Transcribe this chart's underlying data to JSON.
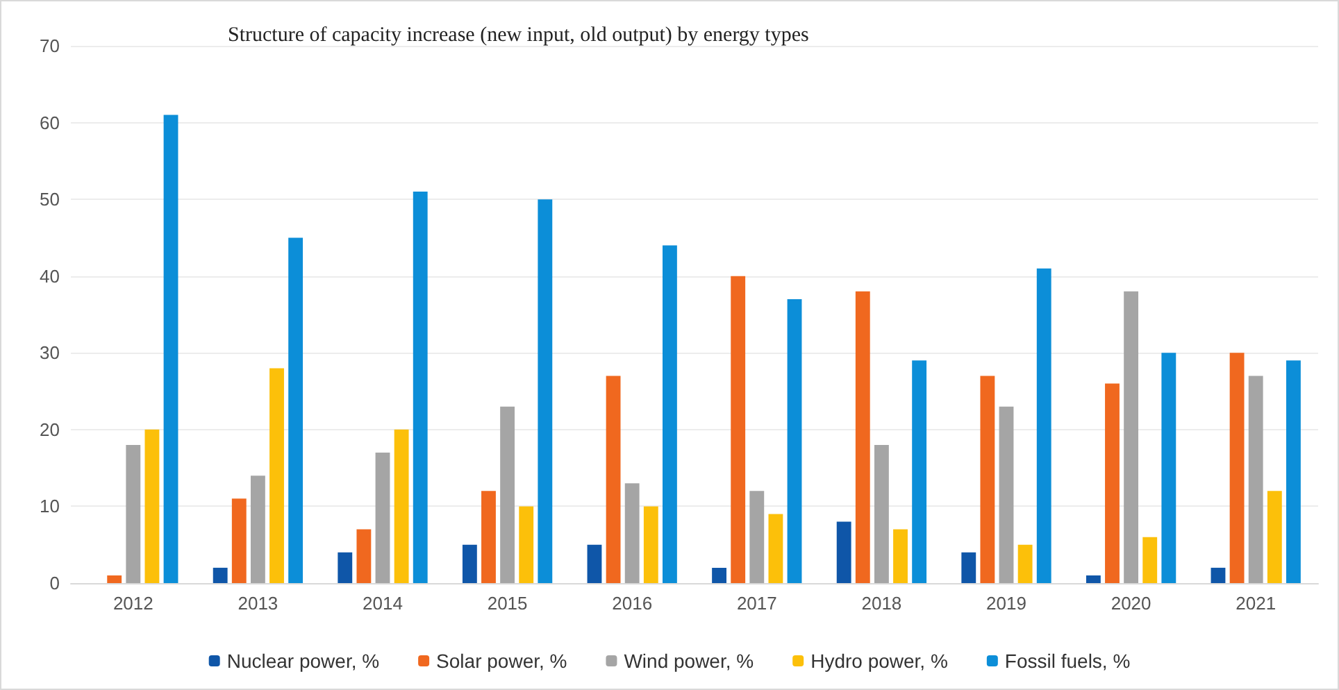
{
  "chart_data": {
    "type": "bar",
    "title": "Structure of capacity increase (new input, old output) by energy types",
    "categories": [
      "2012",
      "2013",
      "2014",
      "2015",
      "2016",
      "2017",
      "2018",
      "2019",
      "2020",
      "2021"
    ],
    "series": [
      {
        "name": "Nuclear power, %",
        "color": "#0f56a8",
        "values": [
          0,
          2,
          4,
          5,
          5,
          2,
          8,
          4,
          1,
          2
        ]
      },
      {
        "name": "Solar power, %",
        "color": "#f0681f",
        "values": [
          1,
          11,
          7,
          12,
          27,
          40,
          38,
          27,
          26,
          30
        ]
      },
      {
        "name": "Wind power, %",
        "color": "#a5a5a5",
        "values": [
          18,
          14,
          17,
          23,
          13,
          12,
          18,
          23,
          38,
          27
        ]
      },
      {
        "name": "Hydro power, %",
        "color": "#fcc00a",
        "values": [
          20,
          28,
          20,
          10,
          10,
          9,
          7,
          5,
          6,
          12
        ]
      },
      {
        "name": "Fossil fuels, %",
        "color": "#0c8ed8",
        "values": [
          61,
          45,
          51,
          50,
          44,
          37,
          29,
          41,
          30,
          29
        ]
      }
    ],
    "ylim": [
      0,
      70
    ],
    "yticks": [
      0,
      10,
      20,
      30,
      40,
      50,
      60,
      70
    ],
    "grid": "y",
    "legend": "bottom"
  }
}
